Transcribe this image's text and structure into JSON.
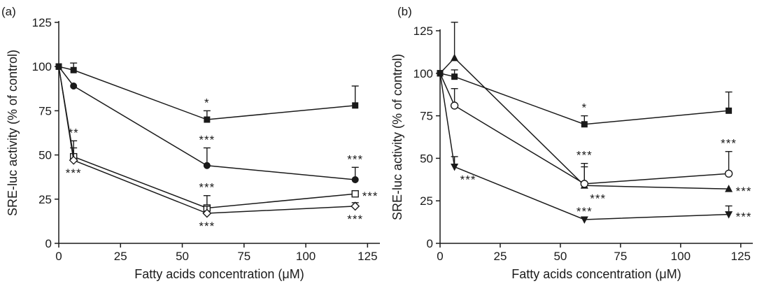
{
  "chart_data": [
    {
      "panel_label": "(a)",
      "type": "line",
      "ylabel": "SRE-luc activity (% of control)",
      "xlabel": "Fatty acids concentration (μM)",
      "xlim": [
        0,
        130
      ],
      "ylim": [
        0,
        125
      ],
      "xticks": [
        0,
        25,
        50,
        75,
        100,
        125
      ],
      "yticks": [
        0,
        25,
        50,
        75,
        100,
        125
      ],
      "grid": false,
      "series": [
        {
          "marker": "square-filled",
          "x": [
            0,
            6,
            60,
            120
          ],
          "y": [
            100,
            98,
            70,
            78
          ],
          "err": [
            0,
            4,
            5,
            11
          ],
          "annotations": [
            {
              "x": 60,
              "text": "*",
              "pos": "above"
            }
          ]
        },
        {
          "marker": "circle-filled",
          "x": [
            0,
            6,
            60,
            120
          ],
          "y": [
            100,
            89,
            44,
            36
          ],
          "err": [
            0,
            0,
            10,
            7
          ],
          "annotations": [
            {
              "x": 60,
              "text": "***",
              "pos": "above"
            },
            {
              "x": 120,
              "text": "***",
              "pos": "above"
            }
          ]
        },
        {
          "marker": "square-open",
          "x": [
            0,
            6,
            60,
            120
          ],
          "y": [
            100,
            49,
            20,
            28
          ],
          "err": [
            0,
            9,
            7,
            0
          ],
          "annotations": [
            {
              "x": 6,
              "text": "**",
              "pos": "above"
            },
            {
              "x": 60,
              "text": "***",
              "pos": "above"
            },
            {
              "x": 120,
              "text": "***",
              "pos": "right"
            }
          ]
        },
        {
          "marker": "diamond-open",
          "x": [
            0,
            6,
            60,
            120
          ],
          "y": [
            100,
            47,
            17,
            21
          ],
          "err": [
            0,
            7,
            4,
            2
          ],
          "annotations": [
            {
              "x": 6,
              "text": "***",
              "pos": "below"
            },
            {
              "x": 60,
              "text": "***",
              "pos": "below"
            },
            {
              "x": 120,
              "text": "***",
              "pos": "below"
            }
          ]
        }
      ]
    },
    {
      "panel_label": "(b)",
      "type": "line",
      "ylabel": "SRE-luc activity (% of control)",
      "xlabel": "Fatty acids concentration (μM)",
      "xlim": [
        0,
        130
      ],
      "ylim": [
        0,
        125
      ],
      "xticks": [
        0,
        25,
        50,
        75,
        100,
        125
      ],
      "yticks": [
        0,
        25,
        50,
        75,
        100,
        125
      ],
      "grid": false,
      "series": [
        {
          "marker": "square-filled",
          "x": [
            0,
            6,
            60,
            120
          ],
          "y": [
            100,
            98,
            70,
            78
          ],
          "err": [
            0,
            4,
            5,
            11
          ],
          "annotations": [
            {
              "x": 60,
              "text": "*",
              "pos": "above"
            }
          ]
        },
        {
          "marker": "triangle-up-filled",
          "x": [
            0,
            6,
            60,
            120
          ],
          "y": [
            100,
            109,
            34,
            32
          ],
          "err": [
            0,
            21,
            11,
            0
          ],
          "annotations": [
            {
              "x": 60,
              "text": "***",
              "pos": "below-right"
            },
            {
              "x": 120,
              "text": "***",
              "pos": "right"
            }
          ]
        },
        {
          "marker": "circle-open",
          "x": [
            0,
            6,
            60,
            120
          ],
          "y": [
            100,
            81,
            35,
            41
          ],
          "err": [
            0,
            10,
            12,
            13
          ],
          "annotations": [
            {
              "x": 60,
              "text": "***",
              "pos": "above"
            },
            {
              "x": 120,
              "text": "***",
              "pos": "above"
            }
          ]
        },
        {
          "marker": "triangle-down-filled",
          "x": [
            0,
            6,
            60,
            120
          ],
          "y": [
            100,
            45,
            14,
            17
          ],
          "err": [
            0,
            6,
            0,
            5
          ],
          "annotations": [
            {
              "x": 6,
              "text": "***",
              "pos": "below-right"
            },
            {
              "x": 60,
              "text": "***",
              "pos": "above"
            },
            {
              "x": 120,
              "text": "***",
              "pos": "right"
            }
          ]
        }
      ]
    }
  ]
}
